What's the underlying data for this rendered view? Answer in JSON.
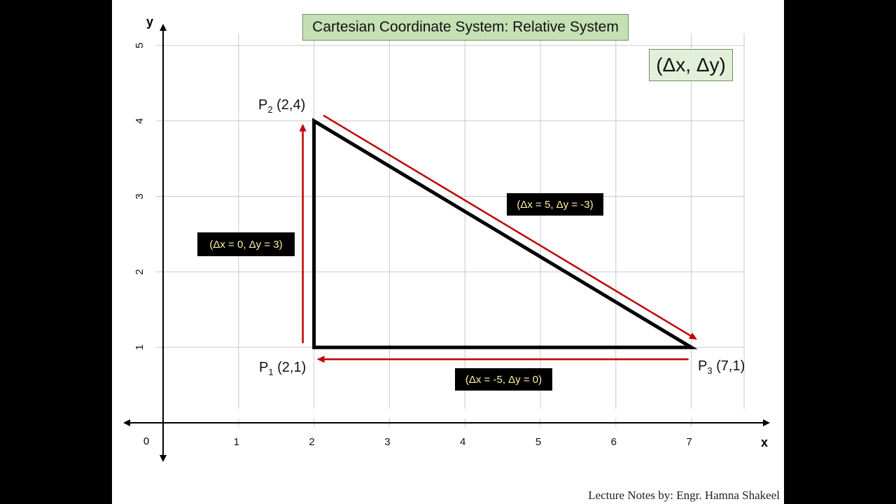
{
  "title": "Cartesian Coordinate System: Relative System",
  "notation": "(Δx, Δy)",
  "axes": {
    "x_label": "x",
    "y_label": "y",
    "origin_label": "0",
    "x_ticks": [
      "1",
      "2",
      "3",
      "4",
      "5",
      "6",
      "7"
    ],
    "y_ticks": [
      "1",
      "2",
      "3",
      "4",
      "5"
    ]
  },
  "points": [
    {
      "name": "P",
      "sub": "1",
      "coords": "(2,1)",
      "x": 2,
      "y": 1
    },
    {
      "name": "P",
      "sub": "2",
      "coords": "(2,4)",
      "x": 2,
      "y": 4
    },
    {
      "name": "P",
      "sub": "3",
      "coords": "(7,1)",
      "x": 7,
      "y": 1
    }
  ],
  "moves": [
    {
      "label": "(Δx = 0, Δy = 3)",
      "from": [
        2,
        1
      ],
      "to": [
        2,
        4
      ]
    },
    {
      "label": "(Δx = 5, Δy = -3)",
      "from": [
        2,
        4
      ],
      "to": [
        7,
        1
      ]
    },
    {
      "label": "(Δx = -5, Δy = 0)",
      "from": [
        7,
        1
      ],
      "to": [
        2,
        1
      ]
    }
  ],
  "colors": {
    "arrow": "#c00000",
    "grid": "#c8c8c8",
    "axis": "#000000",
    "triangle": "#000000"
  },
  "credit": "Lecture Notes by: Engr. Hamna Shakeel"
}
